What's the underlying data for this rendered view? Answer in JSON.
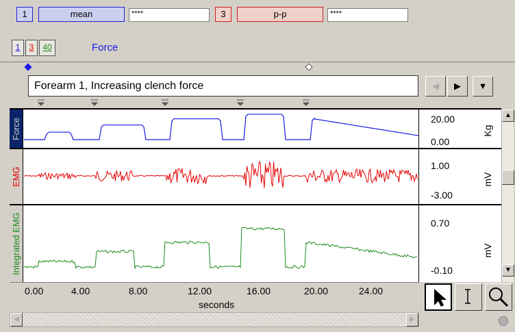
{
  "measurements": [
    {
      "channel": "1",
      "type": "mean",
      "value": "****",
      "color": "#2020d0",
      "bg": "#ccd0f0"
    },
    {
      "channel": "3",
      "type": "p-p",
      "value": "****",
      "color": "#d02020",
      "bg": "#f0d0c8"
    }
  ],
  "channel_buttons": [
    "1",
    "3",
    "40"
  ],
  "selected_channel_label": "Force",
  "journal_title": "Forearm 1, Increasing clench force",
  "channels": [
    {
      "label": "Force",
      "unit": "Kg",
      "scale_top": "20.00",
      "scale_bottom": "0.00",
      "color": "#1a1ae6",
      "label_bg": "#0a246a",
      "label_fg": "#d4d0c8"
    },
    {
      "label": "EMG",
      "unit": "mV",
      "scale_top": "1.00",
      "scale_bottom": "-3.00",
      "color": "#e60000",
      "label_bg": "#d4d0c8",
      "label_fg": "#e60000"
    },
    {
      "label": "Integrated EMG",
      "unit": "mV",
      "scale_top": "0.70",
      "scale_bottom": "-0.10",
      "color": "#1a8a1a",
      "label_bg": "#d4d0c8",
      "label_fg": "#1a8a1a"
    }
  ],
  "x_axis": {
    "ticks": [
      "0.00",
      "4.00",
      "8.00",
      "12.00",
      "16.00",
      "20.00",
      "24.00"
    ],
    "label": "seconds"
  },
  "tools": [
    "arrow-tool",
    "i-beam-tool",
    "zoom-tool"
  ]
}
